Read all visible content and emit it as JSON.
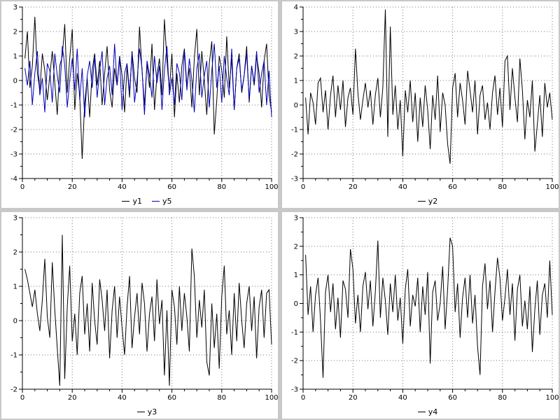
{
  "page": {
    "background_color": "#c8c8c8",
    "panel_background": "#ffffff",
    "grid_color": "#777777",
    "axis_color": "#000000"
  },
  "chart_data": [
    {
      "type": "line",
      "position": "top-left",
      "xlim": [
        0,
        100
      ],
      "ylim": [
        -4,
        3
      ],
      "xticks": [
        0,
        20,
        40,
        60,
        80,
        100
      ],
      "yticks": [
        -4,
        -3,
        -2,
        -1,
        0,
        1,
        2,
        3
      ],
      "x_minor_step": 5,
      "y_minor_step": 0.5,
      "grid": true,
      "x_start": 1,
      "x_step": 1,
      "series": [
        {
          "name": "y1",
          "color": "#000000",
          "values": [
            0.9,
            2.0,
            -0.3,
            0.6,
            2.6,
            0.3,
            -0.4,
            1.1,
            0.4,
            -0.8,
            0.2,
            1.2,
            -0.1,
            -1.4,
            0.6,
            1.0,
            2.3,
            -0.5,
            0.9,
            2.1,
            -1.2,
            0.3,
            -0.6,
            -3.2,
            -0.9,
            0.1,
            -1.5,
            0.4,
            1.1,
            -0.2,
            0.8,
            -1.0,
            0.3,
            1.4,
            -0.4,
            -1.1,
            0.5,
            -0.2,
            1.0,
            0.2,
            -1.3,
            0.6,
            -0.7,
            1.2,
            0.1,
            -0.5,
            2.2,
            0.4,
            -1.0,
            0.7,
            -0.3,
            1.5,
            -1.2,
            0.2,
            0.9,
            -0.6,
            2.5,
            0.8,
            -0.4,
            1.1,
            -1.5,
            0.3,
            -0.9,
            0.6,
            1.3,
            -0.2,
            0.5,
            -1.1,
            0.9,
            2.1,
            -0.6,
            1.2,
            0.0,
            -1.4,
            0.7,
            1.6,
            -2.2,
            -0.8,
            1.0,
            0.4,
            -0.7,
            1.8,
            -0.3,
            0.9,
            -1.2,
            0.5,
            1.1,
            -0.5,
            0.2,
            1.4,
            -0.9,
            0.6,
            -0.2,
            1.0,
            0.3,
            -1.1,
            0.8,
            1.5,
            -0.6,
            -1.3
          ]
        },
        {
          "name": "y5",
          "color": "#0000b8",
          "values": [
            0.5,
            -0.2,
            0.8,
            -1.0,
            0.3,
            1.2,
            -0.6,
            0.1,
            -1.3,
            0.7,
            0.4,
            -0.9,
            1.1,
            0.2,
            -0.5,
            1.4,
            0.6,
            -1.1,
            0.0,
            0.9,
            -0.4,
            1.3,
            -0.8,
            0.5,
            -1.5,
            0.2,
            0.8,
            -0.3,
            1.0,
            -0.7,
            0.4,
            1.2,
            -1.0,
            0.1,
            0.6,
            -0.6,
            1.5,
            -0.2,
            0.9,
            -1.2,
            0.3,
            0.7,
            -0.5,
            1.1,
            -0.9,
            0.0,
            1.3,
            0.5,
            -1.4,
            0.8,
            0.2,
            -0.7,
            1.0,
            -0.1,
            0.6,
            -1.2,
            0.4,
            1.4,
            -0.6,
            0.1,
            -1.0,
            0.7,
            0.3,
            -0.8,
            1.2,
            -0.4,
            0.9,
            0.0,
            -1.3,
            0.5,
            1.1,
            -0.7,
            0.2,
            0.8,
            -1.1,
            0.4,
            1.5,
            -0.3,
            0.6,
            -0.9,
            1.0,
            0.1,
            -0.6,
            1.3,
            -1.2,
            0.5,
            0.9,
            -0.4,
            0.2,
            1.1,
            -0.8,
            0.6,
            -0.1,
            1.2,
            -0.5,
            0.3,
            0.8,
            -1.0,
            0.4,
            -1.5
          ]
        }
      ]
    },
    {
      "type": "line",
      "position": "top-right",
      "xlim": [
        0,
        100
      ],
      "ylim": [
        -3,
        4
      ],
      "xticks": [
        0,
        20,
        40,
        60,
        80,
        100
      ],
      "yticks": [
        -3,
        -2,
        -1,
        0,
        1,
        2,
        3,
        4
      ],
      "x_minor_step": 5,
      "y_minor_step": 0.5,
      "grid": true,
      "x_start": 1,
      "x_step": 1,
      "series": [
        {
          "name": "y2",
          "color": "#000000",
          "values": [
            0.3,
            -1.2,
            0.5,
            0.1,
            -0.8,
            0.9,
            1.1,
            -0.3,
            0.6,
            -1.0,
            0.4,
            1.2,
            -0.5,
            0.8,
            -0.2,
            1.0,
            -0.9,
            0.3,
            0.7,
            -0.4,
            2.3,
            0.5,
            -0.6,
            0.2,
            0.9,
            -0.1,
            0.6,
            -0.8,
            0.4,
            1.1,
            -0.5,
            0.7,
            3.9,
            -1.3,
            3.2,
            -0.4,
            0.8,
            -1.0,
            0.2,
            -2.1,
            0.6,
            -0.3,
            1.0,
            -0.7,
            0.5,
            -1.5,
            0.3,
            -0.9,
            0.8,
            -0.2,
            -1.8,
            0.4,
            -0.6,
            1.2,
            -1.1,
            0.5,
            0.0,
            -1.6,
            -2.4,
            0.7,
            1.3,
            -0.5,
            0.9,
            0.2,
            -0.8,
            1.4,
            0.6,
            -0.3,
            1.0,
            -1.2,
            0.4,
            0.8,
            -0.6,
            0.1,
            -1.0,
            0.5,
            1.2,
            -0.4,
            0.7,
            -0.9,
            1.8,
            2.0,
            -0.2,
            1.5,
            0.3,
            -0.7,
            1.9,
            0.6,
            -1.4,
            0.2,
            -0.5,
            1.0,
            -1.9,
            -0.8,
            0.4,
            -1.3,
            0.9,
            -0.1,
            0.5,
            -0.6
          ]
        }
      ]
    },
    {
      "type": "line",
      "position": "bottom-left",
      "xlim": [
        0,
        100
      ],
      "ylim": [
        -2,
        3
      ],
      "xticks": [
        0,
        20,
        40,
        60,
        80,
        100
      ],
      "yticks": [
        -2,
        -1,
        0,
        1,
        2,
        3
      ],
      "x_minor_step": 5,
      "y_minor_step": 0.5,
      "grid": true,
      "x_start": 1,
      "x_step": 1,
      "series": [
        {
          "name": "y3",
          "color": "#000000",
          "values": [
            1.5,
            1.2,
            0.8,
            0.4,
            0.9,
            0.2,
            -0.3,
            0.6,
            1.8,
            0.1,
            -0.5,
            1.7,
            0.3,
            -0.8,
            -1.9,
            2.5,
            -1.7,
            0.4,
            1.6,
            -0.6,
            0.2,
            -1.0,
            0.8,
            1.3,
            -0.4,
            0.5,
            -0.9,
            1.1,
            0.0,
            -0.7,
            1.2,
            0.6,
            -0.3,
            0.9,
            -1.1,
            0.3,
            1.0,
            -0.5,
            0.7,
            -0.2,
            -1.0,
            0.4,
            1.3,
            -0.8,
            0.1,
            0.8,
            -0.4,
            1.1,
            0.5,
            -0.9,
            0.2,
            0.7,
            -0.6,
            1.2,
            -0.1,
            0.6,
            -1.6,
            0.3,
            -1.9,
            0.9,
            0.4,
            -0.7,
            1.0,
            -0.3,
            0.8,
            0.1,
            -0.9,
            2.1,
            1.3,
            -0.5,
            0.6,
            -0.2,
            0.9,
            -1.2,
            -1.6,
            0.5,
            -0.8,
            0.2,
            -1.4,
            0.7,
            1.6,
            -0.4,
            0.3,
            -1.0,
            0.8,
            -0.6,
            1.1,
            0.0,
            -0.8,
            0.5,
            1.0,
            -0.3,
            0.7,
            -1.1,
            0.4,
            0.9,
            -0.5,
            0.8,
            0.9,
            -0.7
          ]
        }
      ]
    },
    {
      "type": "line",
      "position": "bottom-right",
      "xlim": [
        0,
        100
      ],
      "ylim": [
        -3,
        3
      ],
      "xticks": [
        0,
        20,
        40,
        60,
        80,
        100
      ],
      "yticks": [
        -3,
        -2,
        -1,
        0,
        1,
        2,
        3
      ],
      "x_minor_step": 5,
      "y_minor_step": 0.5,
      "grid": true,
      "x_start": 1,
      "x_step": 1,
      "series": [
        {
          "name": "y4",
          "color": "#000000",
          "values": [
            1.7,
            -0.4,
            0.6,
            -1.0,
            0.3,
            0.9,
            -0.6,
            -2.6,
            0.4,
            1.0,
            -0.3,
            0.7,
            -0.9,
            0.2,
            -1.2,
            0.8,
            0.5,
            -0.5,
            1.9,
            1.2,
            -0.7,
            0.3,
            -1.0,
            0.6,
            1.1,
            -0.2,
            0.8,
            -0.8,
            0.4,
            2.2,
            -0.5,
            0.9,
            0.1,
            -1.1,
            0.7,
            -0.3,
            1.0,
            -0.6,
            0.2,
            -1.4,
            0.5,
            1.2,
            -0.8,
            0.3,
            -0.1,
            0.9,
            -1.0,
            0.6,
            -0.4,
            1.1,
            -2.1,
            0.4,
            0.8,
            -0.6,
            0.0,
            1.3,
            -0.9,
            0.5,
            2.3,
            2.0,
            -0.3,
            0.7,
            -1.2,
            0.2,
            0.9,
            -0.5,
            1.0,
            -0.7,
            0.3,
            -1.5,
            -2.5,
            0.6,
            1.4,
            -0.2,
            0.8,
            -1.0,
            0.4,
            1.6,
            0.9,
            -0.6,
            0.2,
            1.2,
            -0.4,
            0.7,
            -1.3,
            0.5,
            1.0,
            -0.8,
            0.1,
            -0.9,
            0.6,
            -1.7,
            -0.2,
            0.8,
            -1.1,
            0.3,
            0.7,
            -0.5,
            1.5,
            -0.4
          ]
        }
      ]
    }
  ]
}
